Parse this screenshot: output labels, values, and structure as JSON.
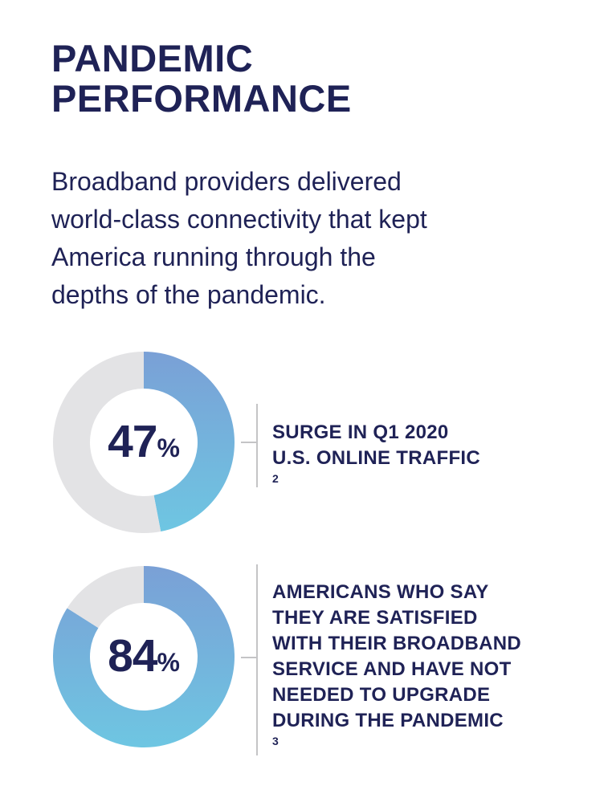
{
  "title_lines": [
    "PANDEMIC",
    "PERFORMANCE"
  ],
  "intro_lines": [
    "Broadband providers delivered",
    "world-class connectivity that kept",
    "America running through the",
    "depths of the pandemic."
  ],
  "colors": {
    "text": "#1f2256",
    "track": "#e3e3e5",
    "gradient_start": "#7aa0d6",
    "gradient_end": "#6ec6e2",
    "divider": "#c4c4c6"
  },
  "stats": [
    {
      "value_text": "47",
      "unit": "%",
      "label_lines": [
        "SURGE IN Q1 2020",
        "U.S. ONLINE TRAFFIC"
      ],
      "footnote": "2"
    },
    {
      "value_text": "84",
      "unit": "%",
      "label_lines": [
        "AMERICANS WHO SAY",
        "THEY ARE SATISFIED",
        "WITH THEIR BROADBAND",
        "SERVICE AND HAVE NOT",
        "NEEDED TO UPGRADE",
        "DURING THE PANDEMIC"
      ],
      "footnote": "3"
    }
  ],
  "chart_data": [
    {
      "type": "pie",
      "style": "donut",
      "values": [
        47,
        53
      ],
      "labels": [
        "",
        ""
      ],
      "title": "",
      "center_label": "47%"
    },
    {
      "type": "pie",
      "style": "donut",
      "values": [
        84,
        16
      ],
      "labels": [
        "",
        ""
      ],
      "title": "",
      "center_label": "84%"
    }
  ]
}
